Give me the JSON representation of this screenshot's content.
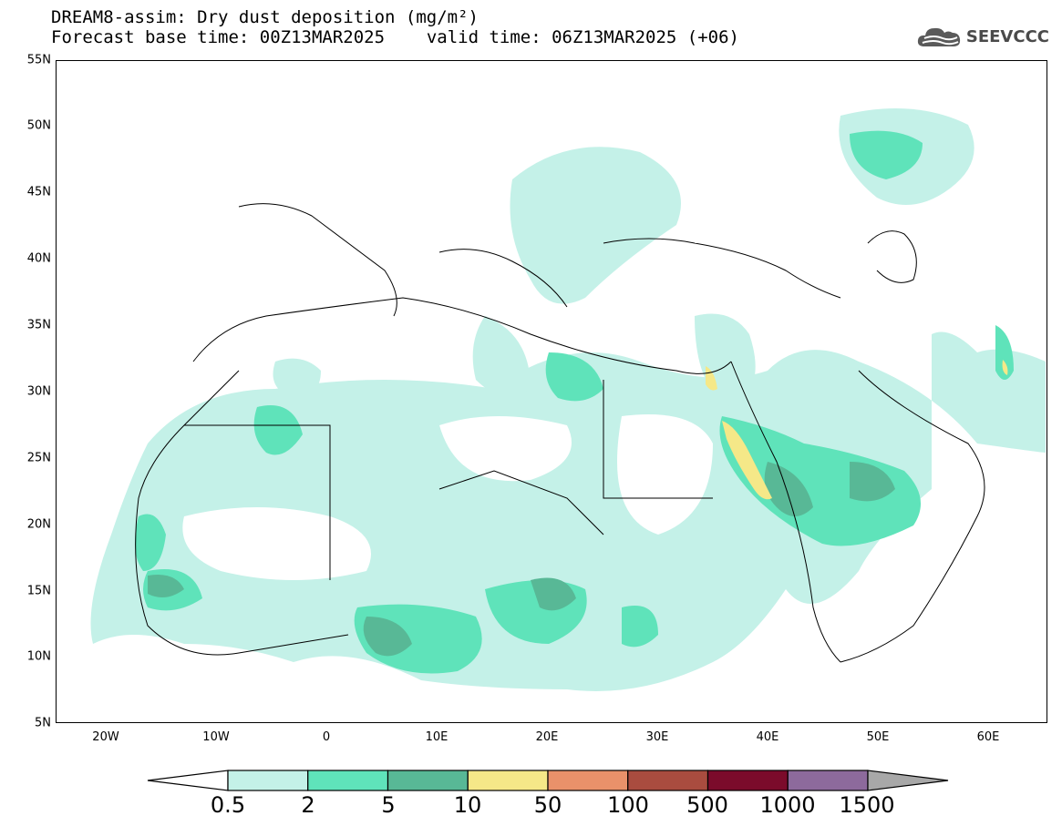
{
  "title_line1": "DREAM8-assim: Dry dust deposition (mg/m²)",
  "title_line2_left": "Forecast base time: 00Z13MAR2025",
  "title_line2_right": "valid time: 06Z13MAR2025 (+06)",
  "logo_text": "SEEVCCC",
  "lat_ticks": [
    "55N",
    "50N",
    "45N",
    "40N",
    "35N",
    "30N",
    "25N",
    "20N",
    "15N",
    "10N",
    "5N"
  ],
  "lon_ticks": [
    "20W",
    "10W",
    "0",
    "10E",
    "20E",
    "30E",
    "40E",
    "50E",
    "60E"
  ],
  "colorbar": {
    "labels": [
      "0.5",
      "2",
      "5",
      "10",
      "50",
      "100",
      "500",
      "1000",
      "1500"
    ],
    "colors": [
      "#c4f1e8",
      "#5fe3ba",
      "#58b896",
      "#f5e888",
      "#e9916a",
      "#a94c3f",
      "#7b0b2b",
      "#8d6a9c"
    ],
    "under_color": "#ffffff",
    "over_color": "#a8a8a8"
  }
}
